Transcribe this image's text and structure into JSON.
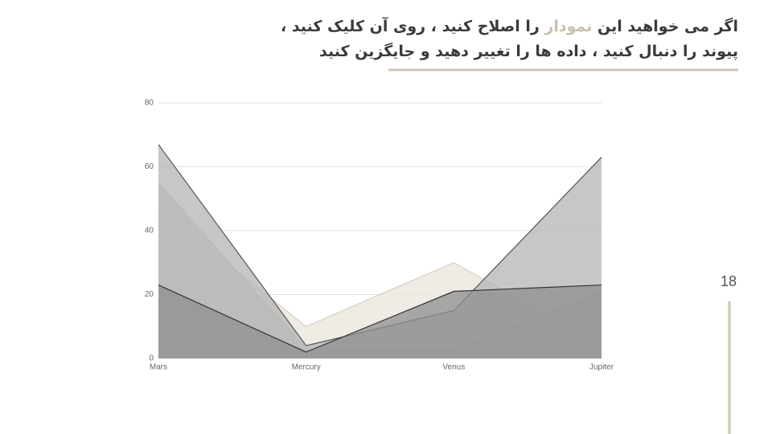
{
  "slide": {
    "title_line1": [
      "اگر می خواهید این ",
      "نمودار",
      " را اصلاح کنید ، روی آن کلیک کنید ،"
    ],
    "title_line2": "پیوند را دنبال کنید ، داده ها را تغییر دهید و جایگزین کنید",
    "page_number": "18"
  },
  "chart_data": {
    "type": "area",
    "categories": [
      "Mars",
      "Mercury",
      "Venus",
      "Jupiter"
    ],
    "series": [
      {
        "color": "#e9e4dc",
        "line_color": "#d6cfc2",
        "values": [
          47,
          10,
          30,
          4
        ]
      },
      {
        "color": "#c8c8c8",
        "line_color": "#d0ccc4",
        "values": [
          55,
          3,
          3,
          21
        ]
      },
      {
        "color": "#b4b4b4",
        "line_color": "#555555",
        "values": [
          67,
          4,
          15,
          63
        ]
      },
      {
        "color": "#8f8f8f",
        "line_color": "#333333",
        "values": [
          23,
          2,
          21,
          23
        ]
      }
    ],
    "ylim": [
      0,
      80
    ],
    "yticks": [
      0,
      20,
      40,
      60,
      80
    ],
    "grid": true
  }
}
